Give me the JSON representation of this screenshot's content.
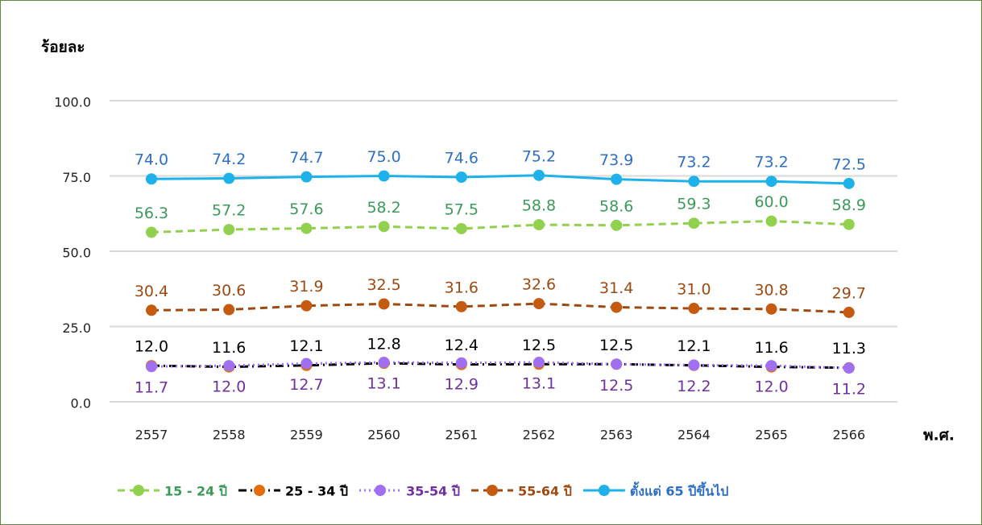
{
  "chart_data": {
    "type": "line",
    "y_title": "ร้อยละ",
    "x_title": "พ.ศ.",
    "categories": [
      "2557",
      "2558",
      "2559",
      "2560",
      "2561",
      "2562",
      "2563",
      "2564",
      "2565",
      "2566"
    ],
    "ylim": [
      0,
      100
    ],
    "yticks": [
      {
        "value": 0,
        "label": "0.0"
      },
      {
        "value": 25,
        "label": "25.0"
      },
      {
        "value": 50,
        "label": "50.0"
      },
      {
        "value": 75,
        "label": "75.0"
      },
      {
        "value": 100,
        "label": "100.0"
      }
    ],
    "grid": true,
    "legend": "bottom",
    "series": [
      {
        "name": "15 - 24 ปี",
        "color": "#92d050",
        "label_color": "#3b9a5a",
        "marker_color": "#92d050",
        "line_style": "dashed",
        "label_position": "above",
        "values": [
          56.3,
          57.2,
          57.6,
          58.2,
          57.5,
          58.8,
          58.6,
          59.3,
          60.0,
          58.9
        ],
        "value_labels": [
          "56.3",
          "57.2",
          "57.6",
          "58.2",
          "57.5",
          "58.8",
          "58.6",
          "59.3",
          "60.0",
          "58.9"
        ]
      },
      {
        "name": "25 - 34 ปี",
        "color": "#000000",
        "label_color": "#000000",
        "marker_color": "#e46c0a",
        "line_style": "dashdot",
        "label_position": "above",
        "values": [
          12.0,
          11.6,
          12.1,
          12.8,
          12.4,
          12.5,
          12.5,
          12.1,
          11.6,
          11.3
        ],
        "value_labels": [
          "12.0",
          "11.6",
          "12.1",
          "12.8",
          "12.4",
          "12.5",
          "12.5",
          "12.1",
          "11.6",
          "11.3"
        ]
      },
      {
        "name": "35-54 ปี",
        "color": "#a070f0",
        "label_color": "#7030a0",
        "marker_color": "#a070f0",
        "line_style": "dotted",
        "label_position": "below",
        "values": [
          11.7,
          12.0,
          12.7,
          13.1,
          12.9,
          13.1,
          12.5,
          12.2,
          12.0,
          11.2
        ],
        "value_labels": [
          "11.7",
          "12.0",
          "12.7",
          "13.1",
          "12.9",
          "13.1",
          "12.5",
          "12.2",
          "12.0",
          "11.2"
        ]
      },
      {
        "name": "55-64 ปี",
        "color": "#9c4a12",
        "label_color": "#9c4a12",
        "marker_color": "#c55a11",
        "line_style": "dashed",
        "label_position": "above",
        "values": [
          30.4,
          30.6,
          31.9,
          32.5,
          31.6,
          32.6,
          31.4,
          31.0,
          30.8,
          29.7
        ],
        "value_labels": [
          "30.4",
          "30.6",
          "31.9",
          "32.5",
          "31.6",
          "32.6",
          "31.4",
          "31.0",
          "30.8",
          "29.7"
        ]
      },
      {
        "name": "ตั้งแต่ 65 ปีขึ้นไป",
        "color": "#1fb2ea",
        "label_color": "#2e6fc4",
        "marker_color": "#1fb2ea",
        "line_style": "solid",
        "label_position": "above",
        "values": [
          74.0,
          74.2,
          74.7,
          75.0,
          74.6,
          75.2,
          73.9,
          73.2,
          73.2,
          72.5
        ],
        "value_labels": [
          "74.0",
          "74.2",
          "74.7",
          "75.0",
          "74.6",
          "75.2",
          "73.9",
          "73.2",
          "73.2",
          "72.5"
        ]
      }
    ]
  }
}
